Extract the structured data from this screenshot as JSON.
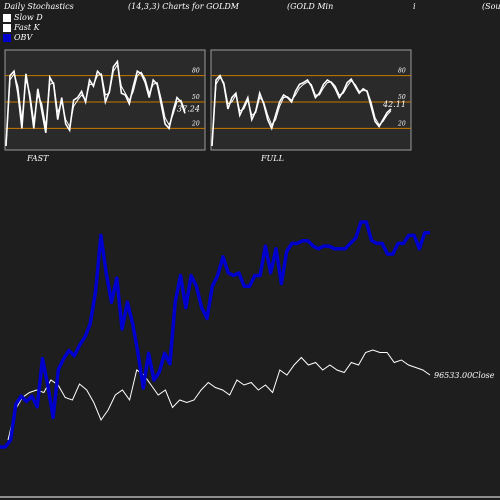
{
  "header": {
    "title": "Daily Stochastics",
    "params": "(14,3,3) Charts for GOLDM",
    "name": "(GOLD Min",
    "extra": "i",
    "source": "(Sou"
  },
  "legend": [
    {
      "label": "Slow  D",
      "color": "#ffffff"
    },
    {
      "label": "Fast  K",
      "color": "#ffffff"
    },
    {
      "label": "OBV",
      "color": "#0000cc"
    }
  ],
  "chart_data": [
    {
      "type": "line",
      "title": "FAST",
      "ylim": [
        0,
        100
      ],
      "levels": [
        80,
        50,
        20
      ],
      "level_color": "#c87800",
      "yticks": [
        "80",
        "50",
        "20"
      ],
      "last_label": "37.24",
      "series": [
        {
          "values": [
            0,
            80,
            85,
            60,
            20,
            82,
            55,
            20,
            65,
            40,
            15,
            78,
            70,
            30,
            55,
            25,
            18,
            52,
            55,
            62,
            50,
            75,
            68,
            85,
            80,
            50,
            62,
            90,
            96,
            60,
            58,
            48,
            68,
            85,
            82,
            72,
            55,
            75,
            70,
            48,
            25,
            20,
            40,
            55,
            50,
            37
          ]
        },
        {
          "values": [
            0,
            75,
            82,
            68,
            30,
            75,
            60,
            28,
            58,
            48,
            22,
            70,
            72,
            38,
            50,
            30,
            22,
            45,
            52,
            58,
            52,
            70,
            70,
            80,
            82,
            58,
            60,
            85,
            92,
            68,
            60,
            52,
            62,
            80,
            84,
            76,
            60,
            70,
            72,
            54,
            32,
            24,
            36,
            50,
            52,
            40
          ]
        }
      ]
    },
    {
      "type": "line",
      "title": "FULL",
      "ylim": [
        0,
        100
      ],
      "levels": [
        80,
        50,
        20
      ],
      "level_color": "#c87800",
      "yticks": [
        "80",
        "50",
        "20"
      ],
      "last_label": "42.11",
      "series": [
        {
          "values": [
            0,
            75,
            80,
            70,
            42,
            55,
            60,
            35,
            45,
            55,
            30,
            40,
            60,
            48,
            30,
            20,
            35,
            50,
            58,
            55,
            50,
            62,
            70,
            72,
            75,
            68,
            55,
            60,
            70,
            75,
            72,
            65,
            55,
            62,
            72,
            76,
            68,
            60,
            65,
            62,
            45,
            28,
            22,
            30,
            38,
            42
          ]
        },
        {
          "values": [
            0,
            70,
            78,
            72,
            48,
            50,
            58,
            40,
            42,
            52,
            35,
            38,
            55,
            50,
            35,
            24,
            30,
            45,
            55,
            56,
            52,
            58,
            66,
            70,
            73,
            70,
            58,
            58,
            66,
            72,
            73,
            68,
            58,
            60,
            68,
            74,
            70,
            62,
            63,
            63,
            50,
            32,
            24,
            28,
            35,
            40
          ]
        }
      ]
    },
    {
      "type": "line",
      "last_label": "96533.00Close",
      "series": [
        {
          "name": "OBV",
          "color": "#0000cc",
          "values": [
            15,
            15,
            28,
            95,
            110,
            100,
            110,
            90,
            180,
            130,
            70,
            160,
            180,
            195,
            185,
            205,
            220,
            245,
            305,
            410,
            340,
            285,
            330,
            235,
            285,
            245,
            190,
            125,
            190,
            140,
            155,
            190,
            170,
            285,
            335,
            275,
            335,
            315,
            275,
            255,
            315,
            335,
            370,
            340,
            335,
            340,
            315,
            315,
            335,
            335,
            390,
            340,
            385,
            320,
            380,
            395,
            395,
            400,
            400,
            390,
            385,
            390,
            390,
            385,
            385,
            385,
            395,
            405,
            435,
            435,
            400,
            395,
            395,
            375,
            375,
            395,
            395,
            410,
            410,
            385,
            415,
            415
          ]
        },
        {
          "name": "Close",
          "color": "#ffffff",
          "values": [
            0,
            60,
            85,
            95,
            100,
            95,
            120,
            110,
            85,
            80,
            112,
            100,
            75,
            40,
            60,
            90,
            100,
            80,
            140,
            130,
            110,
            90,
            100,
            65,
            80,
            75,
            80,
            100,
            115,
            105,
            100,
            90,
            120,
            110,
            115,
            100,
            110,
            95,
            140,
            130,
            150,
            165,
            150,
            155,
            140,
            150,
            140,
            135,
            155,
            150,
            175,
            180,
            175,
            175,
            155,
            160,
            150,
            145,
            140,
            130
          ]
        }
      ]
    }
  ]
}
